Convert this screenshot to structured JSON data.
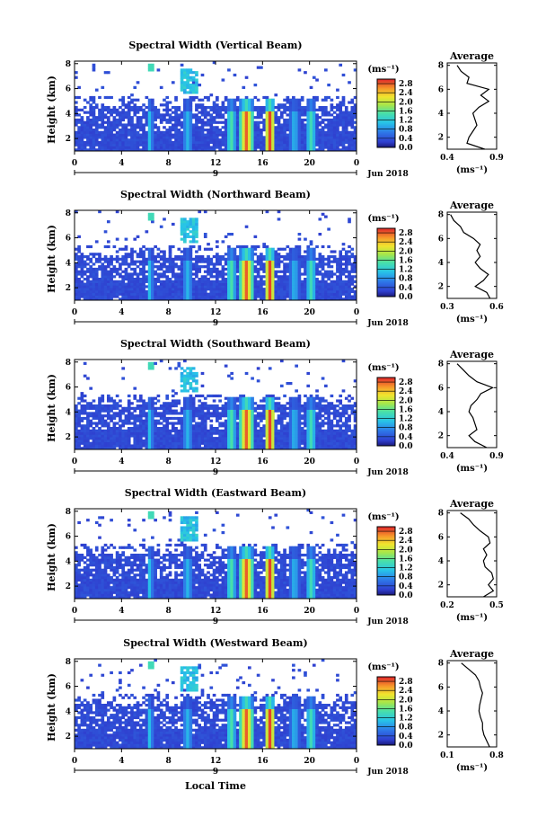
{
  "figure": {
    "x_axis_title": "Local Time",
    "month_label": "Jun 2018",
    "day_label": "9"
  },
  "chart_data": [
    {
      "type": "heatmap",
      "title": "Spectral Width (Vertical Beam)",
      "ylabel": "Height (km)",
      "colorbar_unit": "(ms⁻¹)",
      "x_ticks": [
        "0",
        "4",
        "8",
        "12",
        "16",
        "20",
        "0"
      ],
      "y_ticks": [
        "2",
        "4",
        "6",
        "8"
      ],
      "xlim": [
        0,
        24
      ],
      "ylim": [
        1,
        8.2
      ],
      "colorbar_ticks": [
        "0.0",
        "0.4",
        "0.8",
        "1.2",
        "1.6",
        "2.0",
        "2.4",
        "2.8"
      ],
      "colorbar_range": [
        0,
        3.0
      ],
      "profile": {
        "title": "Average",
        "xlabel": "(ms⁻¹)",
        "x_ticks": [
          "0.4",
          "0.9"
        ],
        "xlim": [
          0.4,
          0.9
        ],
        "y_ticks": [
          "2",
          "4",
          "6",
          "8"
        ],
        "heights": [
          1.0,
          1.5,
          2.0,
          2.5,
          3.0,
          3.5,
          4.0,
          4.5,
          5.0,
          5.5,
          6.0,
          6.5,
          7.0,
          7.5,
          8.0
        ],
        "values": [
          0.78,
          0.6,
          0.62,
          0.66,
          0.7,
          0.68,
          0.66,
          0.72,
          0.82,
          0.74,
          0.82,
          0.6,
          0.62,
          0.54,
          0.5
        ]
      }
    },
    {
      "type": "heatmap",
      "title": "Spectral Width (Northward Beam)",
      "ylabel": "Height (km)",
      "colorbar_unit": "(ms⁻¹)",
      "x_ticks": [
        "0",
        "4",
        "8",
        "12",
        "16",
        "20",
        "0"
      ],
      "y_ticks": [
        "2",
        "4",
        "6",
        "8"
      ],
      "xlim": [
        0,
        24
      ],
      "ylim": [
        1,
        8.2
      ],
      "colorbar_ticks": [
        "0.0",
        "0.4",
        "0.8",
        "1.2",
        "1.6",
        "2.0",
        "2.4",
        "2.8"
      ],
      "colorbar_range": [
        0,
        3.0
      ],
      "profile": {
        "title": "Average",
        "xlabel": "(ms⁻¹)",
        "x_ticks": [
          "0.3",
          "0.6"
        ],
        "xlim": [
          0.3,
          0.6
        ],
        "y_ticks": [
          "2",
          "4",
          "6",
          "8"
        ],
        "heights": [
          1.0,
          1.5,
          2.0,
          2.5,
          3.0,
          3.5,
          4.0,
          4.5,
          5.0,
          5.5,
          6.0,
          6.5,
          7.0,
          7.5,
          8.0
        ],
        "values": [
          0.56,
          0.54,
          0.47,
          0.52,
          0.55,
          0.5,
          0.47,
          0.5,
          0.48,
          0.5,
          0.46,
          0.4,
          0.38,
          0.34,
          0.32
        ]
      }
    },
    {
      "type": "heatmap",
      "title": "Spectral Width (Southward Beam)",
      "ylabel": "Height (km)",
      "colorbar_unit": "(ms⁻¹)",
      "x_ticks": [
        "0",
        "4",
        "8",
        "12",
        "16",
        "20",
        "0"
      ],
      "y_ticks": [
        "2",
        "4",
        "6",
        "8"
      ],
      "xlim": [
        0,
        24
      ],
      "ylim": [
        1,
        8.2
      ],
      "colorbar_ticks": [
        "0.0",
        "0.4",
        "0.8",
        "1.2",
        "1.6",
        "2.0",
        "2.4",
        "2.8"
      ],
      "colorbar_range": [
        0,
        3.0
      ],
      "profile": {
        "title": "Average",
        "xlabel": "(ms⁻¹)",
        "x_ticks": [
          "0.4",
          "0.9"
        ],
        "xlim": [
          0.4,
          0.9
        ],
        "y_ticks": [
          "2",
          "4",
          "6",
          "8"
        ],
        "heights": [
          1.0,
          1.5,
          2.0,
          2.5,
          3.0,
          3.5,
          4.0,
          4.5,
          5.0,
          5.5,
          6.0,
          6.5,
          7.0,
          7.5,
          8.0
        ],
        "values": [
          0.8,
          0.68,
          0.62,
          0.7,
          0.68,
          0.66,
          0.62,
          0.64,
          0.7,
          0.74,
          0.86,
          0.7,
          0.62,
          0.56,
          0.5
        ]
      }
    },
    {
      "type": "heatmap",
      "title": "Spectral Width (Eastward Beam)",
      "ylabel": "Height (km)",
      "colorbar_unit": "(ms⁻¹)",
      "x_ticks": [
        "0",
        "4",
        "8",
        "12",
        "16",
        "20",
        "0"
      ],
      "y_ticks": [
        "2",
        "4",
        "6",
        "8"
      ],
      "xlim": [
        0,
        24
      ],
      "ylim": [
        1,
        8.2
      ],
      "colorbar_ticks": [
        "0.0",
        "0.4",
        "0.8",
        "1.2",
        "1.6",
        "2.0",
        "2.4",
        "2.8"
      ],
      "colorbar_range": [
        0,
        3.0
      ],
      "profile": {
        "title": "Average",
        "xlabel": "(ms⁻¹)",
        "x_ticks": [
          "0.2",
          "0.5"
        ],
        "xlim": [
          0.2,
          0.5
        ],
        "y_ticks": [
          "2",
          "4",
          "6",
          "8"
        ],
        "heights": [
          1.0,
          1.5,
          2.0,
          2.5,
          3.0,
          3.5,
          4.0,
          4.5,
          5.0,
          5.5,
          6.0,
          6.5,
          7.0,
          7.5,
          8.0
        ],
        "values": [
          0.42,
          0.48,
          0.45,
          0.48,
          0.47,
          0.43,
          0.42,
          0.44,
          0.42,
          0.46,
          0.45,
          0.4,
          0.36,
          0.33,
          0.28
        ]
      }
    },
    {
      "type": "heatmap",
      "title": "Spectral Width (Westward Beam)",
      "ylabel": "Height (km)",
      "colorbar_unit": "(ms⁻¹)",
      "x_ticks": [
        "0",
        "4",
        "8",
        "12",
        "16",
        "20",
        "0"
      ],
      "y_ticks": [
        "2",
        "4",
        "6",
        "8"
      ],
      "xlim": [
        0,
        24
      ],
      "ylim": [
        1,
        8.2
      ],
      "colorbar_ticks": [
        "0.0",
        "0.4",
        "0.8",
        "1.2",
        "1.6",
        "2.0",
        "2.4",
        "2.8"
      ],
      "colorbar_range": [
        0,
        3.0
      ],
      "profile": {
        "title": "Average",
        "xlabel": "(ms⁻¹)",
        "x_ticks": [
          "0.1",
          "0.8"
        ],
        "xlim": [
          0.1,
          0.8
        ],
        "y_ticks": [
          "2",
          "4",
          "6",
          "8"
        ],
        "heights": [
          1.0,
          1.5,
          2.0,
          2.5,
          3.0,
          3.5,
          4.0,
          4.5,
          5.0,
          5.5,
          6.0,
          6.5,
          7.0,
          7.5,
          8.0
        ],
        "values": [
          0.7,
          0.66,
          0.62,
          0.6,
          0.6,
          0.57,
          0.55,
          0.56,
          0.58,
          0.6,
          0.57,
          0.55,
          0.5,
          0.4,
          0.3
        ]
      }
    }
  ]
}
